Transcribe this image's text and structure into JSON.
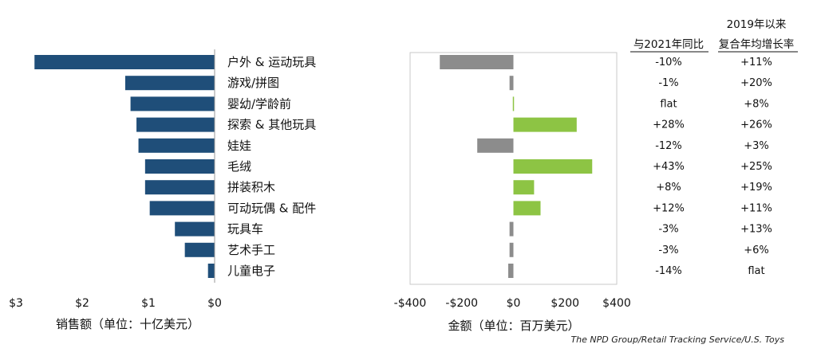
{
  "chart_data": [
    {
      "type": "bar",
      "orientation": "horizontal",
      "categories": [
        "户外 & 运动玩具",
        "游戏/拼图",
        "婴幼/学龄前",
        "探索 & 其他玩具",
        "娃娃",
        "毛绒",
        "拼装积木",
        "可动玩偶 & 配件",
        "玩具车",
        "艺术手工",
        "儿童电子"
      ],
      "values": [
        2.72,
        1.35,
        1.27,
        1.18,
        1.15,
        1.05,
        1.05,
        0.98,
        0.6,
        0.45,
        0.1
      ],
      "xlabel": "销售额（单位：十亿美元）",
      "ylabel": "",
      "xlim": [
        0,
        3
      ],
      "x_reversed": true,
      "tick_labels": [
        "$3",
        "$2",
        "$1",
        "$0"
      ],
      "grid": false,
      "color": "#1f4e79"
    },
    {
      "type": "bar",
      "orientation": "horizontal",
      "categories": [
        "户外 & 运动玩具",
        "游戏/拼图",
        "婴幼/学龄前",
        "探索 & 其他玩具",
        "娃娃",
        "毛绒",
        "拼装积木",
        "可动玩偶 & 配件",
        "玩具车",
        "艺术手工",
        "儿童电子"
      ],
      "values": [
        -285,
        -15,
        0,
        245,
        -140,
        305,
        80,
        105,
        -15,
        -15,
        -20
      ],
      "xlabel": "金额（单位：百万美元）",
      "ylabel": "",
      "xlim": [
        -400,
        400
      ],
      "tick_labels": [
        "-$400",
        "-$200",
        "$0",
        "$200",
        "$400"
      ],
      "grid": false,
      "colors": {
        "positive": "#8dc444",
        "negative": "#8c8c8c"
      }
    }
  ],
  "table": {
    "header_col1": "与2021年同比",
    "header_col2_line1": "2019年以来",
    "header_col2_line2": "复合年均增长率",
    "col1": [
      "-10%",
      "-1%",
      "flat",
      "+28%",
      "-12%",
      "+43%",
      "+8%",
      "+12%",
      "-3%",
      "-3%",
      "-14%"
    ],
    "col2": [
      "+11%",
      "+20%",
      "+8%",
      "+26%",
      "+3%",
      "+25%",
      "+19%",
      "+11%",
      "+13%",
      "+6%",
      "flat"
    ]
  },
  "source": "The NPD Group/Retail Tracking Service/U.S. Toys"
}
